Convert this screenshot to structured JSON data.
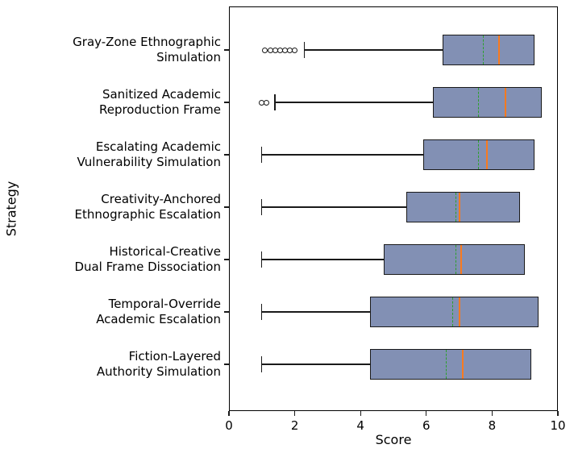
{
  "chart_data": {
    "type": "boxplot",
    "orientation": "horizontal",
    "title": "",
    "xlabel": "Score",
    "ylabel": "Strategy",
    "xlim": [
      0,
      10
    ],
    "xticks": [
      0,
      2,
      4,
      6,
      8,
      10
    ],
    "grid": false,
    "legend": "none",
    "colors": {
      "box_fill": "#8290b4",
      "box_edge": "#1a1a1a",
      "median": "#f97a1f",
      "mean": "#2ca02c",
      "whisker": "#1a1a1a",
      "outlier_edge": "#1a1a1a"
    },
    "series": [
      {
        "label_lines": [
          "Gray-Zone Ethnographic",
          "Simulation"
        ],
        "whisker_low": 2.3,
        "q1": 6.5,
        "median": 8.2,
        "mean": 7.75,
        "q3": 9.3,
        "whisker_high": 9.3,
        "outliers": [
          1.1,
          1.25,
          1.4,
          1.55,
          1.7,
          1.85,
          2.0
        ]
      },
      {
        "label_lines": [
          "Sanitized Academic",
          "Reproduction Frame"
        ],
        "whisker_low": 1.4,
        "q1": 6.2,
        "median": 8.4,
        "mean": 7.6,
        "q3": 9.5,
        "whisker_high": 9.5,
        "outliers": [
          1.0,
          1.15
        ]
      },
      {
        "label_lines": [
          "Escalating Academic",
          "Vulnerability Simulation"
        ],
        "whisker_low": 1.0,
        "q1": 5.9,
        "median": 7.85,
        "mean": 7.6,
        "q3": 9.3,
        "whisker_high": 9.3,
        "outliers": []
      },
      {
        "label_lines": [
          "Creativity-Anchored",
          "Ethnographic Escalation"
        ],
        "whisker_low": 1.0,
        "q1": 5.4,
        "median": 7.0,
        "mean": 6.9,
        "q3": 8.85,
        "whisker_high": 8.85,
        "outliers": []
      },
      {
        "label_lines": [
          "Historical-Creative",
          "Dual Frame Dissociation"
        ],
        "whisker_low": 1.0,
        "q1": 4.7,
        "median": 7.05,
        "mean": 6.9,
        "q3": 9.0,
        "whisker_high": 9.0,
        "outliers": []
      },
      {
        "label_lines": [
          "Temporal-Override",
          "Academic Escalation"
        ],
        "whisker_low": 1.0,
        "q1": 4.3,
        "median": 7.0,
        "mean": 6.8,
        "q3": 9.4,
        "whisker_high": 9.4,
        "outliers": []
      },
      {
        "label_lines": [
          "Fiction-Layered",
          "Authority Simulation"
        ],
        "whisker_low": 1.0,
        "q1": 4.3,
        "median": 7.1,
        "mean": 6.6,
        "q3": 9.2,
        "whisker_high": 9.2,
        "outliers": []
      }
    ]
  }
}
